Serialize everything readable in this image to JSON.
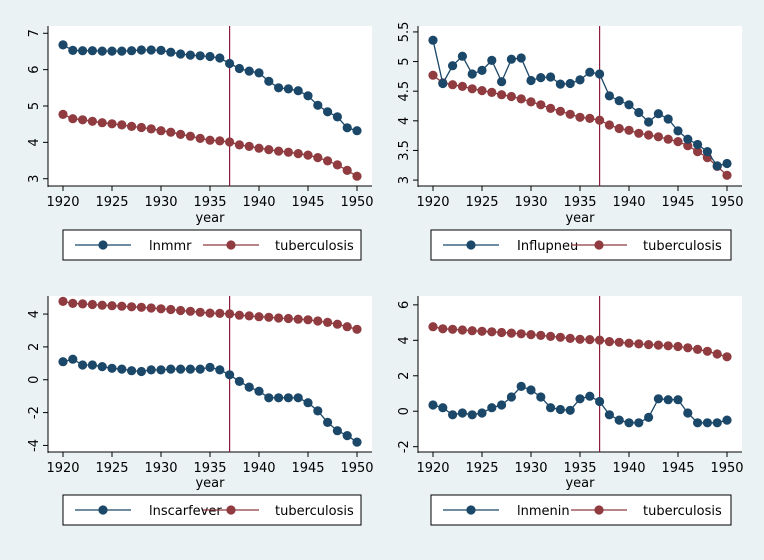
{
  "colors": {
    "background": "#eaf2f3",
    "plot_area": "#ffffff",
    "series_a": "#1b4768",
    "series_b": "#8f3b3f",
    "event_line": "#8c1a3a"
  },
  "chart_data": [
    {
      "type": "line",
      "xlabel": "year",
      "ylabel": "",
      "xlim": [
        1920,
        1950
      ],
      "ylim": [
        2.8,
        7.2
      ],
      "xticks": [
        1920,
        1925,
        1930,
        1935,
        1940,
        1945,
        1950
      ],
      "yticks": [
        "3",
        "4",
        "5",
        "6",
        "7"
      ],
      "ytick_values": [
        3,
        4,
        5,
        6,
        7
      ],
      "vline_x": 1937,
      "grid": false,
      "legend_position": "bottom",
      "x": [
        1920,
        1921,
        1922,
        1923,
        1924,
        1925,
        1926,
        1927,
        1928,
        1929,
        1930,
        1931,
        1932,
        1933,
        1934,
        1935,
        1936,
        1937,
        1938,
        1939,
        1940,
        1941,
        1942,
        1943,
        1944,
        1945,
        1946,
        1947,
        1948,
        1949,
        1950
      ],
      "series": [
        {
          "name": "lnmmr",
          "color": "#1b4768",
          "values": [
            6.68,
            6.53,
            6.52,
            6.52,
            6.51,
            6.51,
            6.51,
            6.52,
            6.54,
            6.54,
            6.53,
            6.48,
            6.43,
            6.4,
            6.38,
            6.36,
            6.32,
            6.17,
            6.03,
            5.96,
            5.91,
            5.68,
            5.5,
            5.47,
            5.42,
            5.28,
            5.02,
            4.84,
            4.7,
            4.4,
            4.32
          ]
        },
        {
          "name": "tuberculosis",
          "color": "#8f3b3f",
          "values": [
            4.77,
            4.65,
            4.62,
            4.58,
            4.54,
            4.51,
            4.48,
            4.44,
            4.41,
            4.37,
            4.32,
            4.28,
            4.22,
            4.17,
            4.11,
            4.06,
            4.04,
            4.01,
            3.93,
            3.89,
            3.84,
            3.8,
            3.76,
            3.73,
            3.69,
            3.65,
            3.58,
            3.49,
            3.38,
            3.23,
            3.07
          ]
        }
      ]
    },
    {
      "type": "line",
      "xlabel": "year",
      "ylabel": "",
      "xlim": [
        1920,
        1950
      ],
      "ylim": [
        2.9,
        5.6
      ],
      "xticks": [
        1920,
        1925,
        1930,
        1935,
        1940,
        1945,
        1950
      ],
      "yticks": [
        "3",
        "3.5",
        "4",
        "4.5",
        "5",
        "5.5"
      ],
      "ytick_values": [
        3,
        3.5,
        4,
        4.5,
        5,
        5.5
      ],
      "vline_x": 1937,
      "grid": false,
      "legend_position": "bottom",
      "x": [
        1920,
        1921,
        1922,
        1923,
        1924,
        1925,
        1926,
        1927,
        1928,
        1929,
        1930,
        1931,
        1932,
        1933,
        1934,
        1935,
        1936,
        1937,
        1938,
        1939,
        1940,
        1941,
        1942,
        1943,
        1944,
        1945,
        1946,
        1947,
        1948,
        1949,
        1950
      ],
      "series": [
        {
          "name": "Influpneu",
          "color": "#1b4768",
          "values": [
            5.36,
            4.63,
            4.93,
            5.09,
            4.79,
            4.85,
            5.02,
            4.66,
            5.04,
            5.06,
            4.68,
            4.73,
            4.74,
            4.62,
            4.63,
            4.69,
            4.82,
            4.79,
            4.42,
            4.34,
            4.27,
            4.14,
            3.98,
            4.12,
            4.03,
            3.83,
            3.69,
            3.6,
            3.48,
            3.24,
            3.28
          ]
        },
        {
          "name": "tuberculosis",
          "color": "#8f3b3f",
          "values": [
            4.77,
            4.64,
            4.61,
            4.58,
            4.54,
            4.51,
            4.48,
            4.44,
            4.41,
            4.37,
            4.32,
            4.27,
            4.21,
            4.16,
            4.11,
            4.06,
            4.04,
            4.01,
            3.93,
            3.87,
            3.84,
            3.79,
            3.76,
            3.73,
            3.69,
            3.65,
            3.58,
            3.48,
            3.38,
            3.23,
            3.08
          ]
        }
      ]
    },
    {
      "type": "line",
      "xlabel": "year",
      "ylabel": "",
      "xlim": [
        1920,
        1950
      ],
      "ylim": [
        -4.4,
        5.1
      ],
      "xticks": [
        1920,
        1925,
        1930,
        1935,
        1940,
        1945,
        1950
      ],
      "yticks": [
        "4",
        "2",
        "0",
        "-2",
        "-4"
      ],
      "ytick_values": [
        4,
        2,
        0,
        -2,
        -4
      ],
      "vline_x": 1937,
      "grid": false,
      "legend_position": "bottom",
      "x": [
        1920,
        1921,
        1922,
        1923,
        1924,
        1925,
        1926,
        1927,
        1928,
        1929,
        1930,
        1931,
        1932,
        1933,
        1934,
        1935,
        1936,
        1937,
        1938,
        1939,
        1940,
        1941,
        1942,
        1943,
        1944,
        1945,
        1946,
        1947,
        1948,
        1949,
        1950
      ],
      "series": [
        {
          "name": "lnscarfever",
          "color": "#1b4768",
          "values": [
            1.1,
            1.25,
            0.9,
            0.9,
            0.8,
            0.7,
            0.65,
            0.55,
            0.5,
            0.6,
            0.6,
            0.65,
            0.65,
            0.65,
            0.65,
            0.75,
            0.6,
            0.3,
            -0.1,
            -0.45,
            -0.7,
            -1.1,
            -1.1,
            -1.1,
            -1.1,
            -1.4,
            -1.9,
            -2.6,
            -3.1,
            -3.4,
            -3.8
          ]
        },
        {
          "name": "tuberculosis",
          "color": "#8f3b3f",
          "values": [
            4.77,
            4.65,
            4.62,
            4.58,
            4.54,
            4.51,
            4.48,
            4.44,
            4.41,
            4.37,
            4.32,
            4.28,
            4.22,
            4.17,
            4.11,
            4.06,
            4.04,
            4.01,
            3.93,
            3.89,
            3.84,
            3.8,
            3.76,
            3.73,
            3.69,
            3.65,
            3.58,
            3.49,
            3.38,
            3.23,
            3.07
          ]
        }
      ]
    },
    {
      "type": "line",
      "xlabel": "year",
      "ylabel": "",
      "xlim": [
        1920,
        1950
      ],
      "ylim": [
        -2.3,
        6.5
      ],
      "xticks": [
        1920,
        1925,
        1930,
        1935,
        1940,
        1945,
        1950
      ],
      "yticks": [
        "6",
        "4",
        "2",
        "0",
        "-2"
      ],
      "ytick_values": [
        6,
        4,
        2,
        0,
        -2
      ],
      "vline_x": 1937,
      "grid": false,
      "legend_position": "bottom",
      "x": [
        1920,
        1921,
        1922,
        1923,
        1924,
        1925,
        1926,
        1927,
        1928,
        1929,
        1930,
        1931,
        1932,
        1933,
        1934,
        1935,
        1936,
        1937,
        1938,
        1939,
        1940,
        1941,
        1942,
        1943,
        1944,
        1945,
        1946,
        1947,
        1948,
        1949,
        1950
      ],
      "series": [
        {
          "name": "lnmenin",
          "color": "#1b4768",
          "values": [
            0.35,
            0.2,
            -0.2,
            -0.1,
            -0.2,
            -0.1,
            0.2,
            0.35,
            0.8,
            1.4,
            1.2,
            0.8,
            0.2,
            0.1,
            0.05,
            0.7,
            0.85,
            0.55,
            -0.2,
            -0.5,
            -0.65,
            -0.65,
            -0.35,
            0.7,
            0.65,
            0.65,
            -0.1,
            -0.65,
            -0.65,
            -0.65,
            -0.5
          ]
        },
        {
          "name": "tuberculosis",
          "color": "#8f3b3f",
          "values": [
            4.77,
            4.65,
            4.62,
            4.58,
            4.54,
            4.51,
            4.48,
            4.44,
            4.41,
            4.37,
            4.32,
            4.28,
            4.22,
            4.17,
            4.11,
            4.06,
            4.04,
            4.01,
            3.93,
            3.89,
            3.84,
            3.8,
            3.76,
            3.73,
            3.69,
            3.65,
            3.58,
            3.49,
            3.38,
            3.23,
            3.07
          ]
        }
      ]
    }
  ]
}
